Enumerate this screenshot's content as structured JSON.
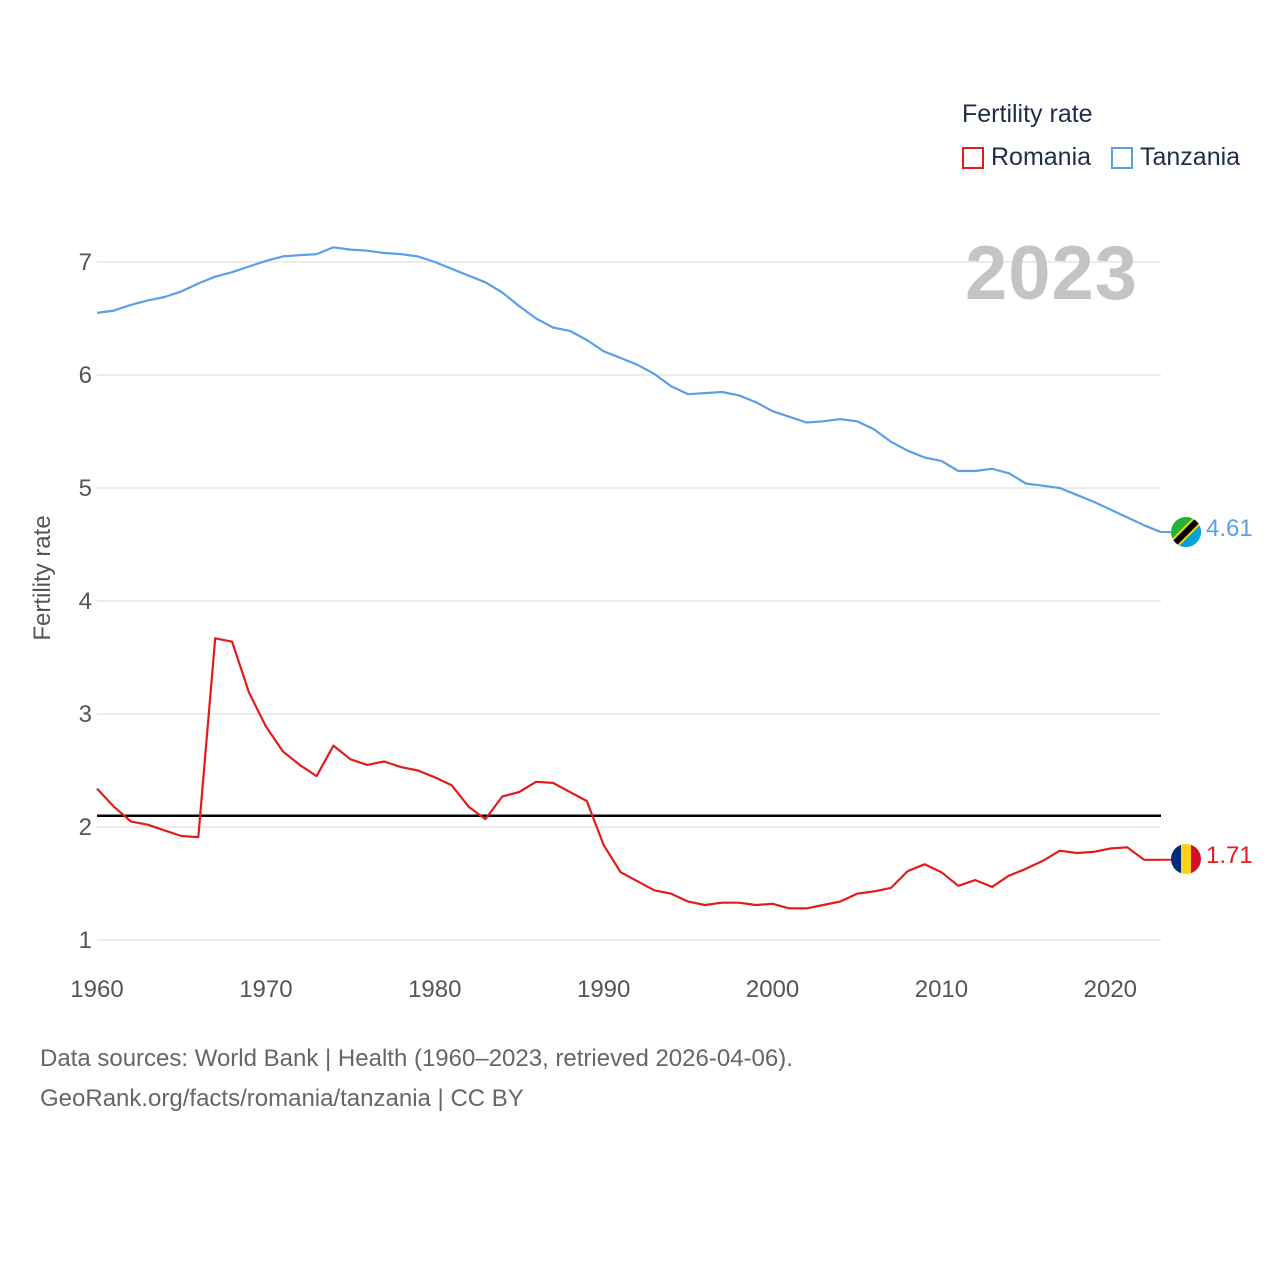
{
  "chart_data": {
    "type": "line",
    "title": "",
    "ylabel": "Fertility rate",
    "xlabel": "",
    "legend_title": "Fertility rate",
    "legend_position": "top-right",
    "current_year": "2023",
    "xlim": [
      1960,
      2023
    ],
    "ylim": [
      1,
      7.2
    ],
    "x_ticks": [
      1960,
      1970,
      1980,
      1990,
      2000,
      2010,
      2020
    ],
    "y_ticks": [
      1,
      2,
      3,
      4,
      5,
      6,
      7
    ],
    "reference_line": 2.1,
    "x": [
      1960,
      1961,
      1962,
      1963,
      1964,
      1965,
      1966,
      1967,
      1968,
      1969,
      1970,
      1971,
      1972,
      1973,
      1974,
      1975,
      1976,
      1977,
      1978,
      1979,
      1980,
      1981,
      1982,
      1983,
      1984,
      1985,
      1986,
      1987,
      1988,
      1989,
      1990,
      1991,
      1992,
      1993,
      1994,
      1995,
      1996,
      1997,
      1998,
      1999,
      2000,
      2001,
      2002,
      2003,
      2004,
      2005,
      2006,
      2007,
      2008,
      2009,
      2010,
      2011,
      2012,
      2013,
      2014,
      2015,
      2016,
      2017,
      2018,
      2019,
      2020,
      2021,
      2022,
      2023
    ],
    "series": [
      {
        "name": "Romania",
        "color": "#e41a1c",
        "end_label": "1.71",
        "values": [
          2.34,
          2.18,
          2.05,
          2.02,
          1.97,
          1.92,
          1.91,
          3.67,
          3.64,
          3.19,
          2.89,
          2.67,
          2.55,
          2.45,
          2.72,
          2.6,
          2.55,
          2.58,
          2.53,
          2.5,
          2.44,
          2.37,
          2.18,
          2.07,
          2.27,
          2.31,
          2.4,
          2.39,
          2.31,
          2.23,
          1.84,
          1.6,
          1.52,
          1.44,
          1.41,
          1.34,
          1.31,
          1.33,
          1.33,
          1.31,
          1.32,
          1.28,
          1.28,
          1.31,
          1.34,
          1.41,
          1.43,
          1.46,
          1.61,
          1.67,
          1.6,
          1.48,
          1.53,
          1.47,
          1.57,
          1.63,
          1.7,
          1.79,
          1.77,
          1.78,
          1.81,
          1.82,
          1.71,
          1.71
        ]
      },
      {
        "name": "Tanzania",
        "color": "#5aa0e6",
        "end_label": "4.61",
        "values": [
          6.55,
          6.57,
          6.62,
          6.66,
          6.69,
          6.74,
          6.81,
          6.87,
          6.91,
          6.96,
          7.01,
          7.05,
          7.06,
          7.07,
          7.13,
          7.11,
          7.1,
          7.08,
          7.07,
          7.05,
          7.0,
          6.94,
          6.88,
          6.82,
          6.73,
          6.61,
          6.5,
          6.42,
          6.39,
          6.31,
          6.21,
          6.15,
          6.09,
          6.01,
          5.9,
          5.83,
          5.84,
          5.85,
          5.82,
          5.76,
          5.68,
          5.63,
          5.58,
          5.59,
          5.61,
          5.59,
          5.52,
          5.41,
          5.33,
          5.27,
          5.24,
          5.15,
          5.15,
          5.17,
          5.13,
          5.04,
          5.02,
          5.0,
          4.94,
          4.88,
          4.81,
          4.74,
          4.67,
          4.61
        ]
      }
    ]
  },
  "footer": {
    "source_line": "Data sources: World Bank | Health (1960–2023, retrieved 2026-04-06).",
    "url_line": "GeoRank.org/facts/romania/tanzania | CC BY"
  }
}
